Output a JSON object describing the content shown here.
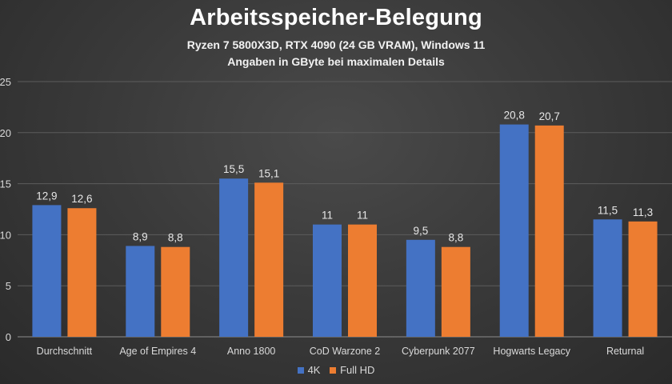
{
  "chart_data": {
    "type": "bar",
    "title": "Arbeitsspeicher-Belegung",
    "subtitle": [
      "Ryzen 7 5800X3D, RTX 4090 (24 GB VRAM), Windows 11",
      "Angaben in GByte bei maximalen Details"
    ],
    "categories": [
      "Durchschnitt",
      "Age of Empires 4",
      "Anno 1800",
      "CoD Warzone 2",
      "Cyberpunk 2077",
      "Hogwarts Legacy",
      "Returnal"
    ],
    "series": [
      {
        "name": "4K",
        "color": "#4472c4",
        "values": [
          12.9,
          8.9,
          15.5,
          11,
          9.5,
          20.8,
          11.5
        ],
        "labels": [
          "12,9",
          "8,9",
          "15,5",
          "11",
          "9,5",
          "20,8",
          "11,5"
        ]
      },
      {
        "name": "Full HD",
        "color": "#ed7d31",
        "values": [
          12.6,
          8.8,
          15.1,
          11,
          8.8,
          20.7,
          11.3
        ],
        "labels": [
          "12,6",
          "8,8",
          "15,1",
          "11",
          "8,8",
          "20,7",
          "11,3"
        ]
      }
    ],
    "y_ticks": [
      "0",
      "5",
      "10",
      "15",
      "20",
      "25"
    ],
    "ylim": [
      0,
      25
    ],
    "grid": true,
    "legend_position": "bottom"
  }
}
